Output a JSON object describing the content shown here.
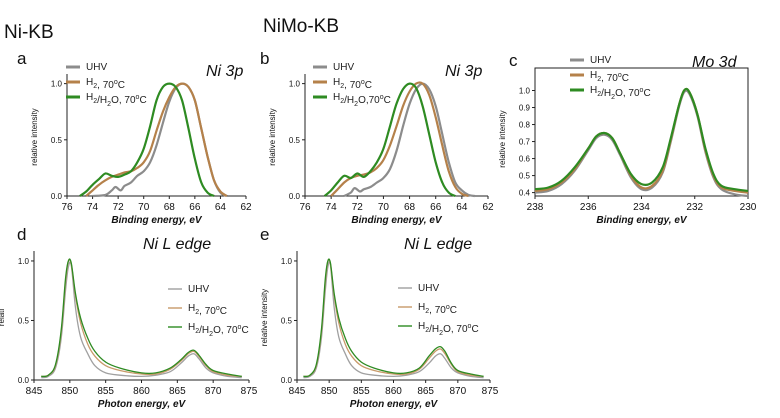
{
  "labels": {
    "group_left": "Ni-KB",
    "group_right": "NiMo-KB"
  },
  "chart_data": [
    {
      "panel": "a",
      "type": "line",
      "title": "Ni 3p",
      "xlabel": "Binding energy, eV",
      "ylabel": "relative intensity",
      "xlim": [
        76,
        62
      ],
      "ylim": [
        0,
        1.05
      ],
      "xticks": [
        "76",
        "74",
        "72",
        "70",
        "68",
        "66",
        "64",
        "62"
      ],
      "yticks": [
        "0.0",
        "0.5",
        "1.0"
      ],
      "legend_position": "top-left",
      "series": [
        {
          "name": "UHV",
          "color": "#8c8c8c",
          "x": [
            74,
            73,
            72.5,
            72.2,
            71.8,
            71.5,
            71,
            70.5,
            70,
            69.5,
            69,
            68.5,
            68,
            67.5,
            67,
            66.5,
            66,
            65.5,
            65,
            64.5,
            64,
            63.5
          ],
          "y": [
            0,
            0.01,
            0.05,
            0.08,
            0.05,
            0.09,
            0.12,
            0.18,
            0.22,
            0.3,
            0.45,
            0.65,
            0.84,
            0.96,
            1.0,
            0.97,
            0.85,
            0.6,
            0.35,
            0.14,
            0.03,
            0
          ]
        },
        {
          "name": "H2, 70°C",
          "color": "#b5814a",
          "x": [
            74.5,
            74,
            73.5,
            73,
            72.5,
            72,
            71.5,
            71,
            70.5,
            70,
            69.5,
            69,
            68.5,
            68,
            67.5,
            67,
            66.5,
            66,
            65.5,
            65,
            64.5,
            64,
            63.5
          ],
          "y": [
            0,
            0.05,
            0.1,
            0.14,
            0.17,
            0.19,
            0.21,
            0.22,
            0.25,
            0.3,
            0.4,
            0.58,
            0.75,
            0.88,
            0.97,
            1.0,
            0.97,
            0.85,
            0.6,
            0.35,
            0.14,
            0.04,
            0
          ]
        },
        {
          "name": "H2/H2O, 70°C",
          "color": "#2e8b22",
          "x": [
            75,
            74.5,
            74,
            73.5,
            73,
            72.5,
            72,
            71.5,
            71,
            70.5,
            70,
            69.5,
            69,
            68.5,
            68,
            67.5,
            67,
            66.5,
            66,
            65.5,
            65,
            64.5
          ],
          "y": [
            0,
            0.04,
            0.1,
            0.15,
            0.2,
            0.18,
            0.17,
            0.19,
            0.22,
            0.3,
            0.42,
            0.62,
            0.85,
            0.97,
            1.0,
            0.97,
            0.85,
            0.6,
            0.33,
            0.12,
            0.03,
            0
          ]
        }
      ]
    },
    {
      "panel": "b",
      "type": "line",
      "title": "Ni 3p",
      "xlabel": "Binding energy, eV",
      "ylabel": "relative intensity",
      "xlim": [
        76,
        62
      ],
      "ylim": [
        0,
        1.05
      ],
      "xticks": [
        "76",
        "74",
        "72",
        "70",
        "68",
        "66",
        "64",
        "62"
      ],
      "yticks": [
        "0.0",
        "0.5",
        "1.0"
      ],
      "legend_position": "top-left",
      "series": [
        {
          "name": "UHV",
          "color": "#8c8c8c",
          "x": [
            73,
            72.5,
            72.2,
            71.8,
            71.5,
            71,
            70.5,
            70,
            69.5,
            69,
            68.5,
            68,
            67.5,
            67,
            66.5,
            66,
            65.5,
            65,
            64.5,
            64,
            63.5,
            63
          ],
          "y": [
            0,
            0.03,
            0.07,
            0.04,
            0.06,
            0.08,
            0.12,
            0.16,
            0.24,
            0.4,
            0.62,
            0.82,
            0.95,
            1.0,
            0.95,
            0.8,
            0.55,
            0.3,
            0.12,
            0.05,
            0.01,
            0
          ]
        },
        {
          "name": "H2, 70°C",
          "color": "#b5814a",
          "x": [
            74,
            73.5,
            73,
            72.5,
            72,
            71.5,
            71,
            70.5,
            70,
            69.5,
            69,
            68.5,
            68,
            67.5,
            67,
            66.5,
            66,
            65.5,
            65,
            64.5,
            64,
            63.5
          ],
          "y": [
            0,
            0.06,
            0.12,
            0.16,
            0.18,
            0.19,
            0.21,
            0.25,
            0.32,
            0.45,
            0.62,
            0.8,
            0.93,
            1.0,
            1.0,
            0.9,
            0.7,
            0.45,
            0.22,
            0.08,
            0.02,
            0
          ]
        },
        {
          "name": "H2/H2O,70°C",
          "color": "#2e8b22",
          "x": [
            74.5,
            74,
            73.5,
            73,
            72.5,
            72,
            71.5,
            71,
            70.5,
            70,
            69.5,
            69,
            68.5,
            68,
            67.5,
            67,
            66.5,
            66,
            65.5,
            65,
            64.5
          ],
          "y": [
            0,
            0.05,
            0.12,
            0.18,
            0.16,
            0.2,
            0.17,
            0.22,
            0.3,
            0.42,
            0.62,
            0.82,
            0.95,
            1.0,
            0.96,
            0.8,
            0.55,
            0.3,
            0.12,
            0.03,
            0
          ]
        }
      ]
    },
    {
      "panel": "c",
      "type": "line",
      "title": "Mo 3d",
      "xlabel": "Binding energy, eV",
      "ylabel": "relative intensity",
      "xlim": [
        238,
        230
      ],
      "ylim": [
        0.38,
        1.05
      ],
      "xticks": [
        "238",
        "236",
        "234",
        "232",
        "230"
      ],
      "yticks": [
        "0.4",
        "0.5",
        "0.6",
        "0.7",
        "0.8",
        "0.9",
        "1.0"
      ],
      "legend_position": "top-left",
      "series": [
        {
          "name": "UHV",
          "color": "#8c8c8c",
          "x": [
            238,
            237.5,
            237,
            236.5,
            236,
            235.7,
            235.4,
            235.1,
            234.8,
            234.4,
            234,
            233.6,
            233.2,
            232.9,
            232.6,
            232.4,
            232.2,
            231.9,
            231.6,
            231.3,
            231,
            230.5,
            230
          ],
          "y": [
            0.4,
            0.41,
            0.45,
            0.53,
            0.65,
            0.72,
            0.74,
            0.71,
            0.62,
            0.49,
            0.42,
            0.43,
            0.52,
            0.7,
            0.9,
            0.99,
            0.98,
            0.85,
            0.64,
            0.49,
            0.42,
            0.39,
            0.38
          ]
        },
        {
          "name": "H2, 70°C",
          "color": "#b5814a",
          "x": [
            238,
            237.5,
            237,
            236.5,
            236,
            235.7,
            235.4,
            235.1,
            234.8,
            234.4,
            234,
            233.6,
            233.2,
            232.9,
            232.6,
            232.4,
            232.2,
            231.9,
            231.6,
            231.3,
            231,
            230.5,
            230
          ],
          "y": [
            0.41,
            0.42,
            0.46,
            0.54,
            0.66,
            0.73,
            0.75,
            0.72,
            0.63,
            0.5,
            0.43,
            0.44,
            0.53,
            0.71,
            0.91,
            1.0,
            0.99,
            0.86,
            0.65,
            0.5,
            0.43,
            0.41,
            0.4
          ]
        },
        {
          "name": "H2/H2O, 70°C",
          "color": "#2e8b22",
          "x": [
            238,
            237.5,
            237,
            236.5,
            236,
            235.7,
            235.4,
            235.1,
            234.8,
            234.4,
            234,
            233.6,
            233.2,
            232.9,
            232.6,
            232.4,
            232.2,
            231.9,
            231.6,
            231.3,
            231,
            230.5,
            230
          ],
          "y": [
            0.42,
            0.43,
            0.47,
            0.55,
            0.66,
            0.73,
            0.75,
            0.72,
            0.63,
            0.51,
            0.45,
            0.46,
            0.55,
            0.72,
            0.91,
            1.0,
            0.99,
            0.86,
            0.66,
            0.51,
            0.44,
            0.42,
            0.41
          ]
        }
      ]
    },
    {
      "panel": "d",
      "type": "line",
      "title": "Ni  L edge",
      "xlabel": "Photon energy, eV",
      "ylabel": "relati",
      "xlim": [
        845,
        875
      ],
      "ylim": [
        0,
        1.05
      ],
      "xticks": [
        "845",
        "850",
        "855",
        "860",
        "865",
        "870",
        "875"
      ],
      "yticks": [
        "0.0",
        "0.5",
        "1.0"
      ],
      "legend_position": "right",
      "series": [
        {
          "name": "UHV",
          "color": "#a0a0a0",
          "x": [
            846,
            847,
            848,
            848.8,
            849.4,
            849.8,
            850.2,
            850.8,
            851.5,
            852.5,
            853.5,
            855,
            857,
            860,
            862,
            864,
            865.5,
            866.5,
            867.3,
            868,
            869,
            870,
            872,
            874
          ],
          "y": [
            0.02,
            0.03,
            0.1,
            0.35,
            0.75,
            0.95,
            0.96,
            0.6,
            0.36,
            0.22,
            0.12,
            0.06,
            0.04,
            0.03,
            0.04,
            0.07,
            0.14,
            0.2,
            0.22,
            0.18,
            0.1,
            0.06,
            0.03,
            0.02
          ]
        },
        {
          "name": "H2, 70°C",
          "color": "#c89a6a",
          "x": [
            846,
            847,
            848,
            848.8,
            849.4,
            849.8,
            850.2,
            850.8,
            851.5,
            852.5,
            853.5,
            855,
            857,
            860,
            862,
            864,
            865.5,
            866.5,
            867.3,
            868,
            869,
            870,
            872,
            874
          ],
          "y": [
            0.03,
            0.04,
            0.12,
            0.4,
            0.82,
            1.0,
            0.97,
            0.7,
            0.48,
            0.3,
            0.2,
            0.12,
            0.08,
            0.05,
            0.05,
            0.09,
            0.16,
            0.22,
            0.24,
            0.2,
            0.12,
            0.07,
            0.04,
            0.03
          ]
        },
        {
          "name": "H2/H2O, 70°C",
          "color": "#2e8b22",
          "x": [
            846,
            847,
            848,
            848.8,
            849.4,
            849.8,
            850.2,
            850.8,
            851.5,
            852.5,
            853.5,
            855,
            857,
            860,
            862,
            864,
            865.5,
            866.5,
            867.3,
            868,
            869,
            870,
            872,
            874
          ],
          "y": [
            0.03,
            0.04,
            0.13,
            0.42,
            0.85,
            1.0,
            0.98,
            0.72,
            0.52,
            0.35,
            0.24,
            0.15,
            0.1,
            0.06,
            0.06,
            0.1,
            0.17,
            0.23,
            0.25,
            0.21,
            0.13,
            0.08,
            0.05,
            0.03
          ]
        }
      ]
    },
    {
      "panel": "e",
      "type": "line",
      "title": "Ni  L edge",
      "xlabel": "Photon energy, eV",
      "ylabel": "relative intensity",
      "xlim": [
        845,
        875
      ],
      "ylim": [
        0,
        1.05
      ],
      "xticks": [
        "845",
        "850",
        "855",
        "860",
        "865",
        "870",
        "875"
      ],
      "yticks": [
        "0.0",
        "0.5",
        "1.0"
      ],
      "legend_position": "right",
      "series": [
        {
          "name": "UHV",
          "color": "#a0a0a0",
          "x": [
            846,
            847,
            848,
            848.8,
            849.4,
            849.8,
            850.2,
            850.8,
            851.5,
            852.5,
            853.5,
            855,
            857,
            860,
            862,
            864,
            865.5,
            866.5,
            867.3,
            868,
            869,
            870,
            872,
            874
          ],
          "y": [
            0.02,
            0.03,
            0.1,
            0.35,
            0.75,
            0.95,
            0.96,
            0.6,
            0.36,
            0.22,
            0.12,
            0.06,
            0.04,
            0.03,
            0.04,
            0.07,
            0.14,
            0.2,
            0.22,
            0.18,
            0.1,
            0.06,
            0.03,
            0.02
          ]
        },
        {
          "name": "H2, 70°C",
          "color": "#c89a6a",
          "x": [
            846,
            847,
            848,
            848.8,
            849.4,
            849.8,
            850.2,
            850.8,
            851.5,
            852.5,
            853.5,
            855,
            857,
            860,
            862,
            864,
            865.5,
            866.5,
            867.3,
            868,
            869,
            870,
            872,
            874
          ],
          "y": [
            0.03,
            0.04,
            0.12,
            0.4,
            0.82,
            1.0,
            0.97,
            0.7,
            0.48,
            0.3,
            0.2,
            0.12,
            0.08,
            0.05,
            0.05,
            0.09,
            0.18,
            0.24,
            0.26,
            0.22,
            0.13,
            0.07,
            0.04,
            0.03
          ]
        },
        {
          "name": "H2/H2O, 70°C",
          "color": "#2e8b22",
          "x": [
            846,
            847,
            848,
            848.8,
            849.4,
            849.8,
            850.2,
            850.8,
            851.5,
            852.5,
            853.5,
            855,
            857,
            860,
            862,
            864,
            865.5,
            866.5,
            867.3,
            868,
            869,
            870,
            872,
            874
          ],
          "y": [
            0.03,
            0.04,
            0.13,
            0.42,
            0.85,
            1.0,
            0.98,
            0.72,
            0.52,
            0.35,
            0.24,
            0.15,
            0.1,
            0.06,
            0.06,
            0.1,
            0.2,
            0.26,
            0.28,
            0.24,
            0.14,
            0.08,
            0.05,
            0.03
          ]
        }
      ]
    }
  ]
}
